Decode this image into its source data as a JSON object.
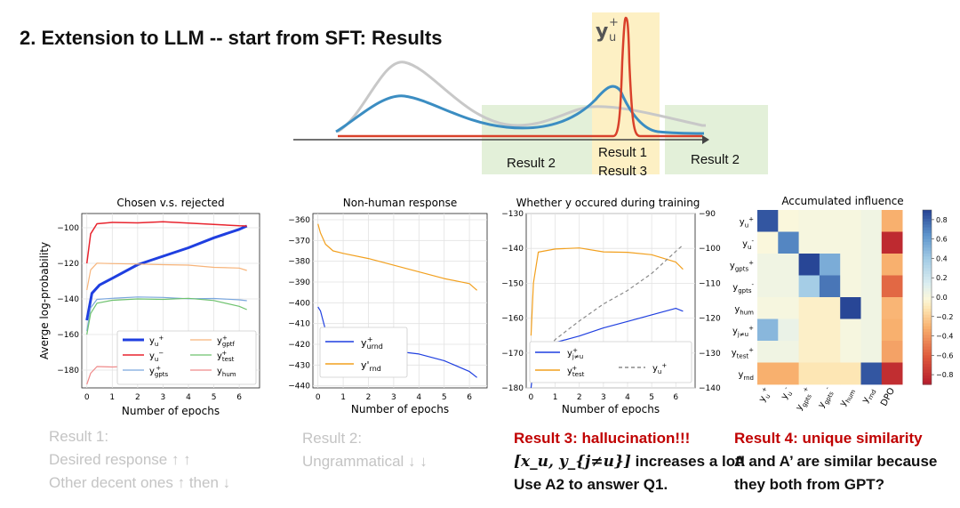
{
  "title": "2. Extension to LLM -- start from SFT: Results",
  "concept": {
    "peak_label": "y",
    "peak_sup": "+",
    "peak_sub": "u",
    "region_labels": [
      "Result 2",
      "Result 1",
      "Result 3",
      "Result 2"
    ],
    "colors": {
      "grey": "#c8c8c8",
      "blue": "#3b8dc2",
      "red": "#d9412b",
      "yellow": "#fdf0c4",
      "green": "#e3f0d9"
    }
  },
  "chart_data": [
    {
      "type": "line",
      "title": "Chosen v.s. rejected",
      "xlabel": "Number of epochs",
      "ylabel": "Averge log-probability",
      "xlim": [
        -0.2,
        6.8
      ],
      "ylim": [
        -190,
        -92
      ],
      "xticks": [
        0,
        1,
        2,
        3,
        4,
        5,
        6
      ],
      "yticks": [
        -100,
        -120,
        -140,
        -160,
        -180
      ],
      "series": [
        {
          "name": "y_u^+",
          "color": "#1f3fe0",
          "width": 3,
          "x": [
            0,
            0.2,
            0.5,
            1,
            2,
            3,
            4,
            5,
            6,
            6.3
          ],
          "y": [
            -152,
            -137,
            -132,
            -128,
            -121,
            -116,
            -111,
            -106,
            -101,
            -99
          ]
        },
        {
          "name": "y_u^-",
          "color": "#e8242e",
          "width": 1.5,
          "x": [
            0,
            0.15,
            0.4,
            1,
            2,
            3,
            4,
            5,
            6,
            6.3
          ],
          "y": [
            -120,
            -103,
            -98,
            -97,
            -97,
            -97,
            -97.5,
            -98,
            -98.5,
            -99
          ]
        },
        {
          "name": "y_gpts^+",
          "color": "#7aa6dd",
          "width": 1.2,
          "x": [
            0,
            0.15,
            0.4,
            1,
            2,
            3,
            4,
            5,
            6,
            6.3
          ],
          "y": [
            -158,
            -145,
            -140,
            -140,
            -139,
            -139,
            -139.5,
            -140,
            -140.5,
            -141
          ]
        },
        {
          "name": "y_gptf^+",
          "color": "#f7b47a",
          "width": 1.2,
          "x": [
            0,
            0.15,
            0.4,
            1,
            2,
            3,
            4,
            5,
            6,
            6.3
          ],
          "y": [
            -135,
            -124,
            -120,
            -120,
            -120,
            -121,
            -121,
            -122,
            -123,
            -124
          ]
        },
        {
          "name": "y_test^+",
          "color": "#6ec26e",
          "width": 1.2,
          "x": [
            0,
            0.15,
            0.4,
            1,
            2,
            3,
            4,
            5,
            6,
            6.3
          ],
          "y": [
            -160,
            -148,
            -142,
            -141,
            -140,
            -140,
            -140,
            -141,
            -144,
            -146
          ]
        },
        {
          "name": "y_hum",
          "color": "#ef8a8a",
          "width": 1.2,
          "x": [
            0,
            0.15,
            0.4,
            1,
            2,
            3,
            4,
            5,
            6,
            6.3
          ],
          "y": [
            -188,
            -182,
            -178,
            -178,
            -178,
            -177.5,
            -178,
            -178,
            -177,
            -177
          ]
        }
      ],
      "legend": {
        "position": "lower-center",
        "entries": [
          "y_u^+",
          "y_gptf^+",
          "y_u^-",
          "y_test^+",
          "y_gpts^+",
          "y_hum"
        ]
      }
    },
    {
      "type": "line",
      "title": "Non-human response",
      "xlabel": "Number of epochs",
      "ylabel": "",
      "xlim": [
        -0.2,
        6.7
      ],
      "ylim": [
        -441,
        -357
      ],
      "xticks": [
        0,
        1,
        2,
        3,
        4,
        5,
        6
      ],
      "yticks": [
        -360,
        -370,
        -380,
        -390,
        -400,
        -410,
        -420,
        -430,
        -440
      ],
      "series": [
        {
          "name": "y_urnd^+",
          "color": "#1f3fe0",
          "width": 1.2,
          "x": [
            0,
            0.1,
            0.3,
            0.6,
            1,
            2,
            3,
            4,
            5,
            6,
            6.3
          ],
          "y": [
            -402,
            -404,
            -413,
            -417,
            -418,
            -420,
            -423,
            -425,
            -428,
            -433,
            -436
          ]
        },
        {
          "name": "y'_rnd",
          "color": "#f2a01e",
          "width": 1.2,
          "x": [
            0,
            0.1,
            0.3,
            0.6,
            1,
            2,
            3,
            4,
            5,
            6,
            6.3
          ],
          "y": [
            -362,
            -366,
            -372,
            -375,
            -376,
            -379,
            -382,
            -385,
            -388,
            -391,
            -394
          ]
        }
      ],
      "legend": {
        "position": "lower-left",
        "entries": [
          "y_urnd^+",
          "y'_rnd"
        ]
      }
    },
    {
      "type": "line",
      "title": "Whether y occured during training",
      "xlabel": "Number of epochs",
      "ylabel": "",
      "xlim": [
        -0.2,
        6.8
      ],
      "ylim": [
        -180,
        -130
      ],
      "ylim_right": [
        -140,
        -90
      ],
      "xticks": [
        0,
        1,
        2,
        3,
        4,
        5,
        6
      ],
      "yticks": [
        -130,
        -140,
        -150,
        -160,
        -170,
        -180
      ],
      "yticks_right": [
        -90,
        -100,
        -110,
        -120,
        -130,
        -140
      ],
      "series": [
        {
          "name": "y_test^+",
          "color": "#f2a01e",
          "width": 1.2,
          "axis": "left",
          "x": [
            0,
            0.1,
            0.3,
            1,
            2,
            3,
            4,
            5,
            6,
            6.3
          ],
          "y": [
            -165,
            -150,
            -141,
            -140,
            -140,
            -141,
            -141,
            -142,
            -144,
            -146
          ]
        },
        {
          "name": "y_j≠u^+",
          "color": "#1f3fe0",
          "width": 1.2,
          "axis": "left",
          "x": [
            0,
            0.1,
            0.3,
            1,
            2,
            3,
            4,
            5,
            6,
            6.3
          ],
          "y": [
            -180,
            -174,
            -170,
            -167,
            -165,
            -163,
            -161,
            -159,
            -157,
            -158
          ]
        },
        {
          "name": "y_u^+",
          "color": "#8a8a8a",
          "width": 1.2,
          "dash": true,
          "axis": "right",
          "x": [
            0,
            0.3,
            1,
            2,
            3,
            4,
            5,
            6,
            6.3
          ],
          "y": [
            -137,
            -132,
            -126,
            -121,
            -116,
            -112,
            -107,
            -101,
            -99
          ]
        }
      ],
      "legend": {
        "position": "lower",
        "entries": [
          "y_j≠u^+",
          "y_test^+",
          "y_u^+"
        ]
      }
    },
    {
      "type": "heatmap",
      "title": "Accumulated influence",
      "rows": [
        "y_u^+",
        "y_u^-",
        "y_gpts^+",
        "y_gpts^-",
        "y_hum",
        "y_j≠u^+",
        "y_test^+",
        "y_rnd"
      ],
      "cols": [
        "y_u^+",
        "y_u^-",
        "y_gpts^+",
        "y_gpts^-",
        "y_hum",
        "y_rnd",
        "DPO"
      ],
      "values": [
        [
          0.85,
          0.0,
          0.02,
          0.02,
          0.02,
          0.05,
          -0.3
        ],
        [
          0.0,
          0.7,
          0.02,
          0.02,
          0.02,
          0.05,
          -0.82
        ],
        [
          0.05,
          0.05,
          0.9,
          0.55,
          0.02,
          0.05,
          -0.3
        ],
        [
          0.05,
          0.05,
          0.4,
          0.75,
          0.02,
          0.05,
          -0.55
        ],
        [
          0.02,
          0.02,
          -0.05,
          -0.05,
          0.9,
          0.05,
          -0.28
        ],
        [
          0.5,
          0.08,
          -0.05,
          -0.05,
          0.02,
          0.05,
          -0.3
        ],
        [
          0.05,
          0.05,
          -0.05,
          -0.05,
          0.02,
          0.05,
          -0.35
        ],
        [
          -0.3,
          -0.3,
          -0.1,
          -0.1,
          -0.1,
          0.85,
          -0.8
        ]
      ],
      "colorbar": {
        "min": -0.9,
        "max": 0.9,
        "ticks": [
          0.8,
          0.6,
          0.4,
          0.2,
          0.0,
          -0.2,
          -0.4,
          -0.6,
          -0.8
        ],
        "tick_labels": [
          "0.8",
          "0.6",
          "0.4",
          "0.2",
          "0.0",
          "−0.2",
          "−0.4",
          "−0.6",
          "−0.8"
        ]
      }
    }
  ],
  "captions": {
    "r1": {
      "title": "Result 1:",
      "line1": "Desired response ↑ ↑",
      "line2": "Other decent ones ↑ then ↓"
    },
    "r2": {
      "title": "Result 2:",
      "line1": "Ungrammatical ↓ ↓"
    },
    "r3": {
      "title": "Result 3:  hallucination!!!",
      "math": "[x_u, y_{j≠u}]",
      "line1_rest": " increases a lot!",
      "line2": "Use A2 to answer Q1."
    },
    "r4": {
      "title": "Result 4:  unique similarity",
      "line1": "A and A’ are similar because",
      "line2": "they both from GPT?"
    }
  }
}
